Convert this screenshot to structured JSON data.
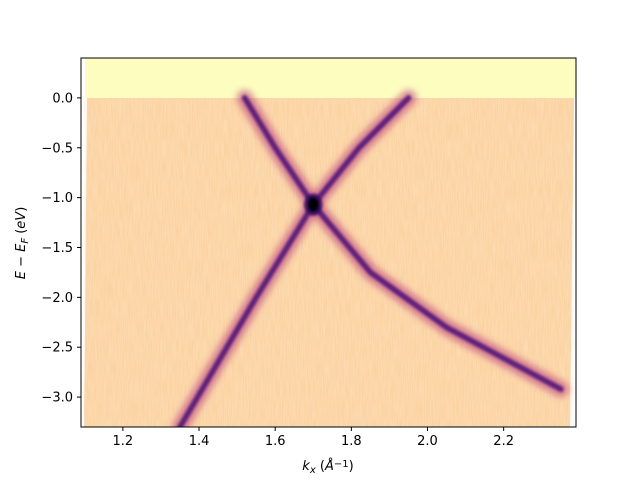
{
  "chart_data": {
    "type": "heatmap",
    "title": "",
    "xlabel": "k_x (Å⁻¹)",
    "ylabel": "E − E_F (eV)",
    "xlim": [
      1.09,
      2.39
    ],
    "ylim": [
      -3.3,
      0.4
    ],
    "x_ticks": [
      1.2,
      1.4,
      1.6,
      1.8,
      2.0,
      2.2
    ],
    "x_tick_labels": [
      "1.2",
      "1.4",
      "1.6",
      "1.8",
      "2.0",
      "2.2"
    ],
    "y_ticks": [
      0.0,
      -0.5,
      -1.0,
      -1.5,
      -2.0,
      -2.5,
      -3.0
    ],
    "y_tick_labels": [
      "0.0",
      "−0.5",
      "−1.0",
      "−1.5",
      "−2.0",
      "−2.5",
      "−3.0"
    ],
    "colormap": "magma_r",
    "grid": false,
    "fermi_level": 0.0,
    "bands": [
      {
        "points": [
          [
            1.35,
            -3.3
          ],
          [
            1.55,
            -2.0
          ],
          [
            1.7,
            -1.07
          ],
          [
            1.82,
            -0.5
          ],
          [
            1.95,
            0.0
          ]
        ]
      },
      {
        "points": [
          [
            1.52,
            0.0
          ],
          [
            1.6,
            -0.5
          ],
          [
            1.7,
            -1.07
          ],
          [
            1.85,
            -1.75
          ],
          [
            2.05,
            -2.3
          ],
          [
            2.35,
            -2.92
          ]
        ]
      }
    ],
    "crossing_point": {
      "x": 1.7,
      "y": -1.07
    }
  }
}
